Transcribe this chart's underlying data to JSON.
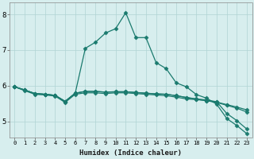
{
  "xlabel": "Humidex (Indice chaleur)",
  "background_color": "#d7eeee",
  "grid_color": "#afd4d4",
  "line_color": "#1a7a6e",
  "xlim": [
    -0.5,
    23.5
  ],
  "ylim": [
    4.55,
    8.35
  ],
  "xticks": [
    0,
    1,
    2,
    3,
    4,
    5,
    6,
    7,
    8,
    9,
    10,
    11,
    12,
    13,
    14,
    15,
    16,
    17,
    18,
    19,
    20,
    21,
    22,
    23
  ],
  "yticks": [
    5,
    6,
    7,
    8
  ],
  "series": [
    [
      5.97,
      5.88,
      5.78,
      5.76,
      5.73,
      5.56,
      5.79,
      7.05,
      7.22,
      7.48,
      7.6,
      8.05,
      7.35,
      7.35,
      6.65,
      6.48,
      6.08,
      5.97,
      5.75,
      5.65,
      5.48,
      5.08,
      4.88,
      4.65
    ],
    [
      5.97,
      5.88,
      5.78,
      5.76,
      5.73,
      5.56,
      5.79,
      5.84,
      5.84,
      5.82,
      5.83,
      5.83,
      5.81,
      5.79,
      5.77,
      5.76,
      5.72,
      5.67,
      5.62,
      5.58,
      5.54,
      5.47,
      5.4,
      5.32
    ],
    [
      5.97,
      5.88,
      5.78,
      5.76,
      5.73,
      5.56,
      5.79,
      5.84,
      5.84,
      5.82,
      5.83,
      5.83,
      5.81,
      5.79,
      5.77,
      5.76,
      5.72,
      5.67,
      5.63,
      5.6,
      5.55,
      5.22,
      5.02,
      4.78
    ],
    [
      5.97,
      5.86,
      5.76,
      5.74,
      5.71,
      5.53,
      5.76,
      5.8,
      5.8,
      5.78,
      5.8,
      5.8,
      5.78,
      5.76,
      5.74,
      5.72,
      5.68,
      5.63,
      5.61,
      5.58,
      5.53,
      5.45,
      5.37,
      5.26
    ]
  ],
  "marker": "D",
  "markersize": 2.5,
  "linewidth": 0.9
}
